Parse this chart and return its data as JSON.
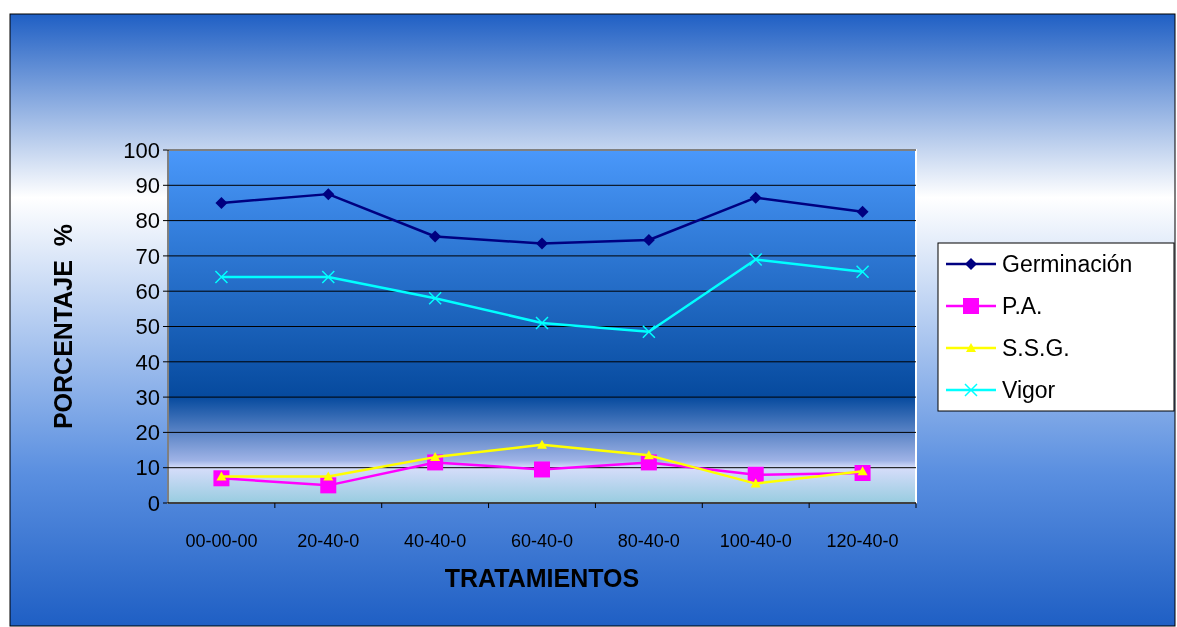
{
  "chart_data": {
    "type": "line",
    "xlabel": "TRATAMIENTOS",
    "ylabel": "PORCENTAJE  %",
    "categories": [
      "00-00-00",
      "20-40-0",
      "40-40-0",
      "60-40-0",
      "80-40-0",
      "100-40-0",
      "120-40-0"
    ],
    "series": [
      {
        "name": "Germinación",
        "color": "#000080",
        "marker": "diamond",
        "values": [
          85,
          87.5,
          75.5,
          73.5,
          74.5,
          86.5,
          82.5
        ]
      },
      {
        "name": "P.A.",
        "color": "#ff00ff",
        "marker": "square",
        "values": [
          7,
          5,
          11.5,
          9.5,
          11.5,
          8,
          8.5
        ]
      },
      {
        "name": "S.S.G.",
        "color": "#ffff00",
        "marker": "triangle",
        "values": [
          7.5,
          7.5,
          13,
          16.5,
          13.5,
          5.5,
          9
        ]
      },
      {
        "name": "Vigor",
        "color": "#00ffff",
        "marker": "cross",
        "values": [
          64,
          64,
          58,
          51,
          48.5,
          69,
          65.5
        ]
      }
    ],
    "ylim": [
      0,
      100
    ],
    "yticks": [
      0,
      10,
      20,
      30,
      40,
      50,
      60,
      70,
      80,
      90,
      100
    ],
    "grid": "y",
    "legend": "right",
    "line_style": "solid"
  }
}
